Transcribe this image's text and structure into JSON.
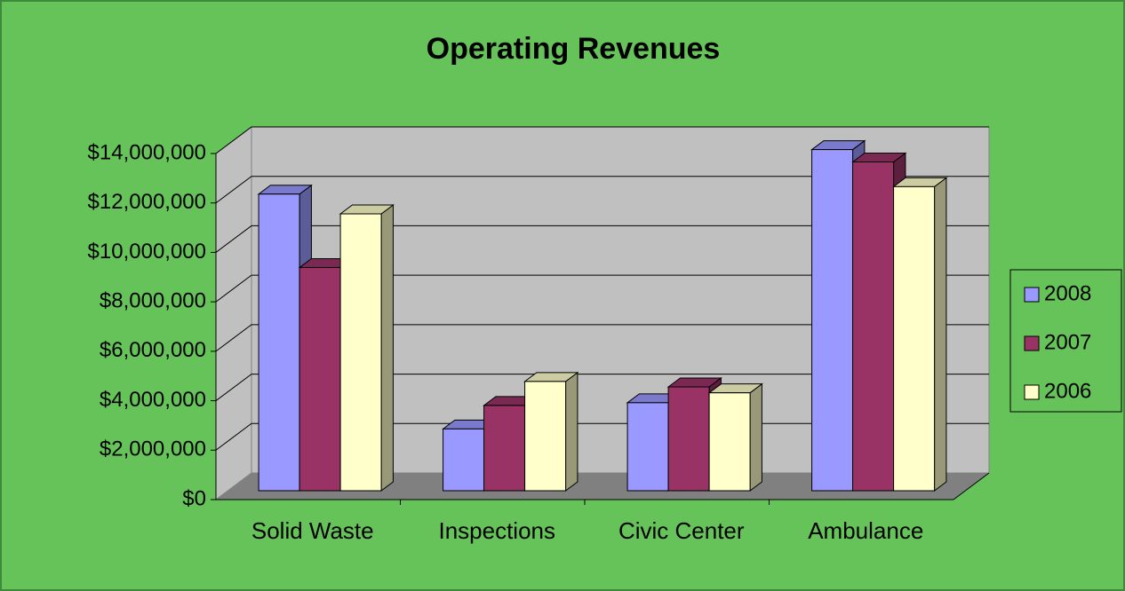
{
  "chart_data": {
    "type": "bar3d",
    "title": "Operating Revenues",
    "categories": [
      "Solid Waste",
      "Inspections",
      "Civic Center",
      "Ambulance"
    ],
    "series": [
      {
        "name": "2008",
        "color": "#9999ff",
        "values": [
          12000000,
          2500000,
          3560000,
          13800000
        ]
      },
      {
        "name": "2007",
        "color": "#993366",
        "values": [
          9030000,
          3450000,
          4200000,
          13300000
        ]
      },
      {
        "name": "2006",
        "color": "#ffffcc",
        "values": [
          11200000,
          4420000,
          3960000,
          12300000
        ]
      }
    ],
    "ylim": [
      0,
      14000000
    ],
    "yticks": [
      {
        "value": 0,
        "label": "$0"
      },
      {
        "value": 2000000,
        "label": "$2,000,000"
      },
      {
        "value": 4000000,
        "label": "$4,000,000"
      },
      {
        "value": 6000000,
        "label": "$6,000,000"
      },
      {
        "value": 8000000,
        "label": "$8,000,000"
      },
      {
        "value": 10000000,
        "label": "$10,000,000"
      },
      {
        "value": 12000000,
        "label": "$12,000,000"
      },
      {
        "value": 14000000,
        "label": "$14,000,000"
      }
    ],
    "grid": true,
    "legend": "right"
  }
}
